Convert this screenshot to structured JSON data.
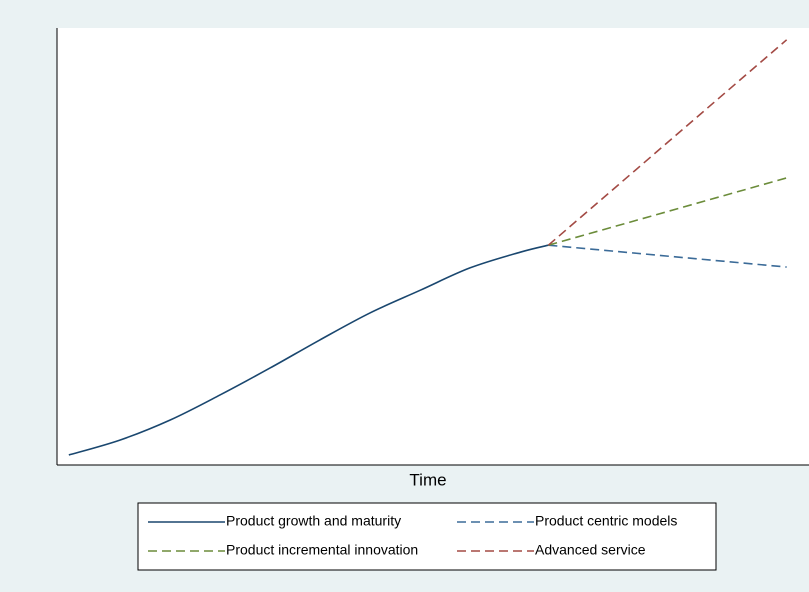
{
  "chart_data": {
    "type": "line",
    "xlabel": "Time",
    "xlim": [
      0,
      100
    ],
    "ylim": [
      0,
      100
    ],
    "series": [
      {
        "name": "Product growth and maturity",
        "color": "#1a476f",
        "line_style": "solid",
        "x": [
          1.6,
          8.5,
          15.3,
          22.0,
          28.8,
          35.5,
          42.3,
          49.1,
          55.8,
          62.6,
          66.4
        ],
        "values": [
          2.3,
          5.7,
          10.3,
          16.0,
          22.2,
          28.6,
          34.8,
          40.0,
          45.1,
          48.7,
          50.3
        ]
      },
      {
        "name": "Product centric models",
        "color": "#3b6b98",
        "line_style": "dashed",
        "x": [
          66.4,
          98.6
        ],
        "values": [
          50.3,
          45.3
        ]
      },
      {
        "name": "Product incremental innovation",
        "color": "#6b8c3a",
        "line_style": "dashed",
        "x": [
          66.4,
          98.6
        ],
        "values": [
          50.3,
          65.7
        ]
      },
      {
        "name": "Advanced service",
        "color": "#a34a44",
        "line_style": "dashed",
        "x": [
          66.4,
          98.6
        ],
        "values": [
          50.3,
          97.3
        ]
      }
    ]
  }
}
